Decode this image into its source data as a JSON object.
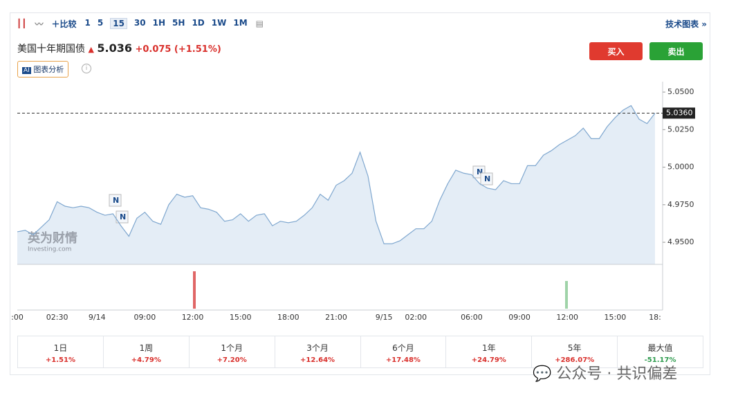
{
  "toolbar": {
    "compare": "比较",
    "intervals": [
      "1",
      "5",
      "15",
      "30",
      "1H",
      "5H",
      "1D",
      "1W",
      "1M"
    ],
    "active_interval": 2,
    "tech_chart": "技术图表 »"
  },
  "header": {
    "name": "美国十年期国债",
    "price": "5.036",
    "change": "+0.075",
    "change_pct": "(+1.51%)",
    "buy": "买入",
    "sell": "卖出",
    "ai": "图表分析"
  },
  "logo": {
    "name": "英为财情",
    "site": "Investing.com"
  },
  "chart_data": {
    "type": "area",
    "color": "#7fa7cf",
    "fill": "#e4edf6",
    "categories": [
      ":00",
      null,
      null,
      null,
      null,
      "02:30",
      null,
      null,
      null,
      null,
      "9/14",
      null,
      null,
      null,
      null,
      null,
      "09:00",
      null,
      null,
      null,
      null,
      null,
      "12:00",
      null,
      null,
      null,
      null,
      null,
      "15:00",
      null,
      null,
      null,
      null,
      null,
      "18:00",
      null,
      null,
      null,
      null,
      null,
      "21:00",
      null,
      null,
      null,
      null,
      null,
      "9/15",
      null,
      null,
      null,
      "02:00",
      null,
      null,
      null,
      null,
      null,
      null,
      "06:00",
      null,
      null,
      null,
      null,
      null,
      "09:00",
      null,
      null,
      null,
      null,
      null,
      "12:00",
      null,
      null,
      null,
      null,
      null,
      "15:00",
      null,
      null,
      null,
      null,
      "18:"
    ],
    "values": [
      4.957,
      4.958,
      4.955,
      4.96,
      4.965,
      4.977,
      4.974,
      4.973,
      4.974,
      4.973,
      4.97,
      4.968,
      4.969,
      4.961,
      4.954,
      4.966,
      4.97,
      4.964,
      4.962,
      4.975,
      4.982,
      4.98,
      4.981,
      4.973,
      4.972,
      4.97,
      4.964,
      4.965,
      4.969,
      4.964,
      4.968,
      4.969,
      4.961,
      4.964,
      4.963,
      4.964,
      4.968,
      4.973,
      4.982,
      4.978,
      4.988,
      4.991,
      4.996,
      5.01,
      4.994,
      4.964,
      4.949,
      4.949,
      4.951,
      4.955,
      4.959,
      4.959,
      4.964,
      4.978,
      4.989,
      4.998,
      4.996,
      4.995,
      4.989,
      4.986,
      4.985,
      4.991,
      4.989,
      4.989,
      5.001,
      5.001,
      5.008,
      5.011,
      5.015,
      5.018,
      5.021,
      5.026,
      5.019,
      5.019,
      5.027,
      5.033,
      5.038,
      5.041,
      5.032,
      5.029,
      5.036
    ],
    "ylim": [
      4.9353,
      5.0551
    ],
    "yticks": [
      {
        "value": 4.95,
        "label": "4.9500"
      },
      {
        "value": 4.975,
        "label": "4.9750"
      },
      {
        "value": 5,
        "label": "5.0000"
      },
      {
        "value": 5.025,
        "label": "5.0250"
      },
      {
        "value": 5.05,
        "label": "5.0500"
      }
    ],
    "price_line": {
      "value": 5.036,
      "label": "5.0360"
    }
  },
  "performance": [
    {
      "period": "1日",
      "change": "+1.51%",
      "color": "#d9302c"
    },
    {
      "period": "1周",
      "change": "+4.79%",
      "color": "#d9302c"
    },
    {
      "period": "1个月",
      "change": "+7.20%",
      "color": "#d9302c"
    },
    {
      "period": "3个月",
      "change": "+12.64%",
      "color": "#d9302c"
    },
    {
      "period": "6个月",
      "change": "+17.48%",
      "color": "#d9302c"
    },
    {
      "period": "1年",
      "change": "+24.79%",
      "color": "#d9302c"
    },
    {
      "period": "5年",
      "change": "+286.07%",
      "color": "#d9302c"
    },
    {
      "period": "最大值",
      "change": "-51.17%",
      "color": "#2e9b4e"
    }
  ],
  "watermark": "公众号 · 共识偏差"
}
